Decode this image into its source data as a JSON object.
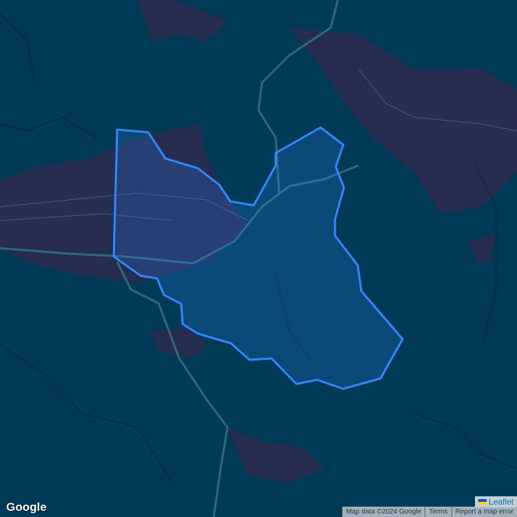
{
  "map": {
    "provider_logo": "Google",
    "attribution": {
      "leaflet_label": "Leaflet",
      "map_data": "Map data ©2024 Google",
      "terms": "Terms",
      "report": "Report a map error"
    },
    "colors": {
      "background": "#013a57",
      "urban": "#262d50",
      "river": "#2e6b7a",
      "polygon_stroke": "#3388ff",
      "polygon_fill": "#3388ff"
    }
  }
}
